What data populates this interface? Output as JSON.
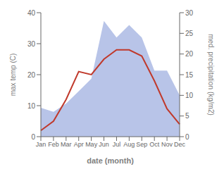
{
  "chart_data": {
    "type": "line",
    "xlabel": "date (month)",
    "ylabel": "max temp (C)",
    "y2label": "med. precipitation (kg/m2)",
    "categories": [
      "Jan",
      "Feb",
      "Mar",
      "Apr",
      "May",
      "Jun",
      "Jul",
      "Aug",
      "Sep",
      "Oct",
      "Nov",
      "Dec"
    ],
    "series": [
      {
        "type": "line",
        "color": "#c0392b",
        "values": [
          2,
          5,
          12,
          21,
          20,
          25,
          28,
          28,
          26,
          18,
          9,
          4
        ]
      },
      {
        "type": "area",
        "color": "#b8c4e8",
        "axis": "y2",
        "values": [
          7,
          6,
          8,
          11,
          14,
          28,
          24,
          27,
          24,
          16,
          16,
          10
        ]
      }
    ],
    "ylim": [
      0,
      40
    ],
    "yticks": [
      0,
      10,
      20,
      30,
      40
    ],
    "y2lim": [
      0,
      30
    ],
    "y2ticks": [
      0,
      5,
      10,
      15,
      20,
      25,
      30
    ],
    "grid": false
  }
}
